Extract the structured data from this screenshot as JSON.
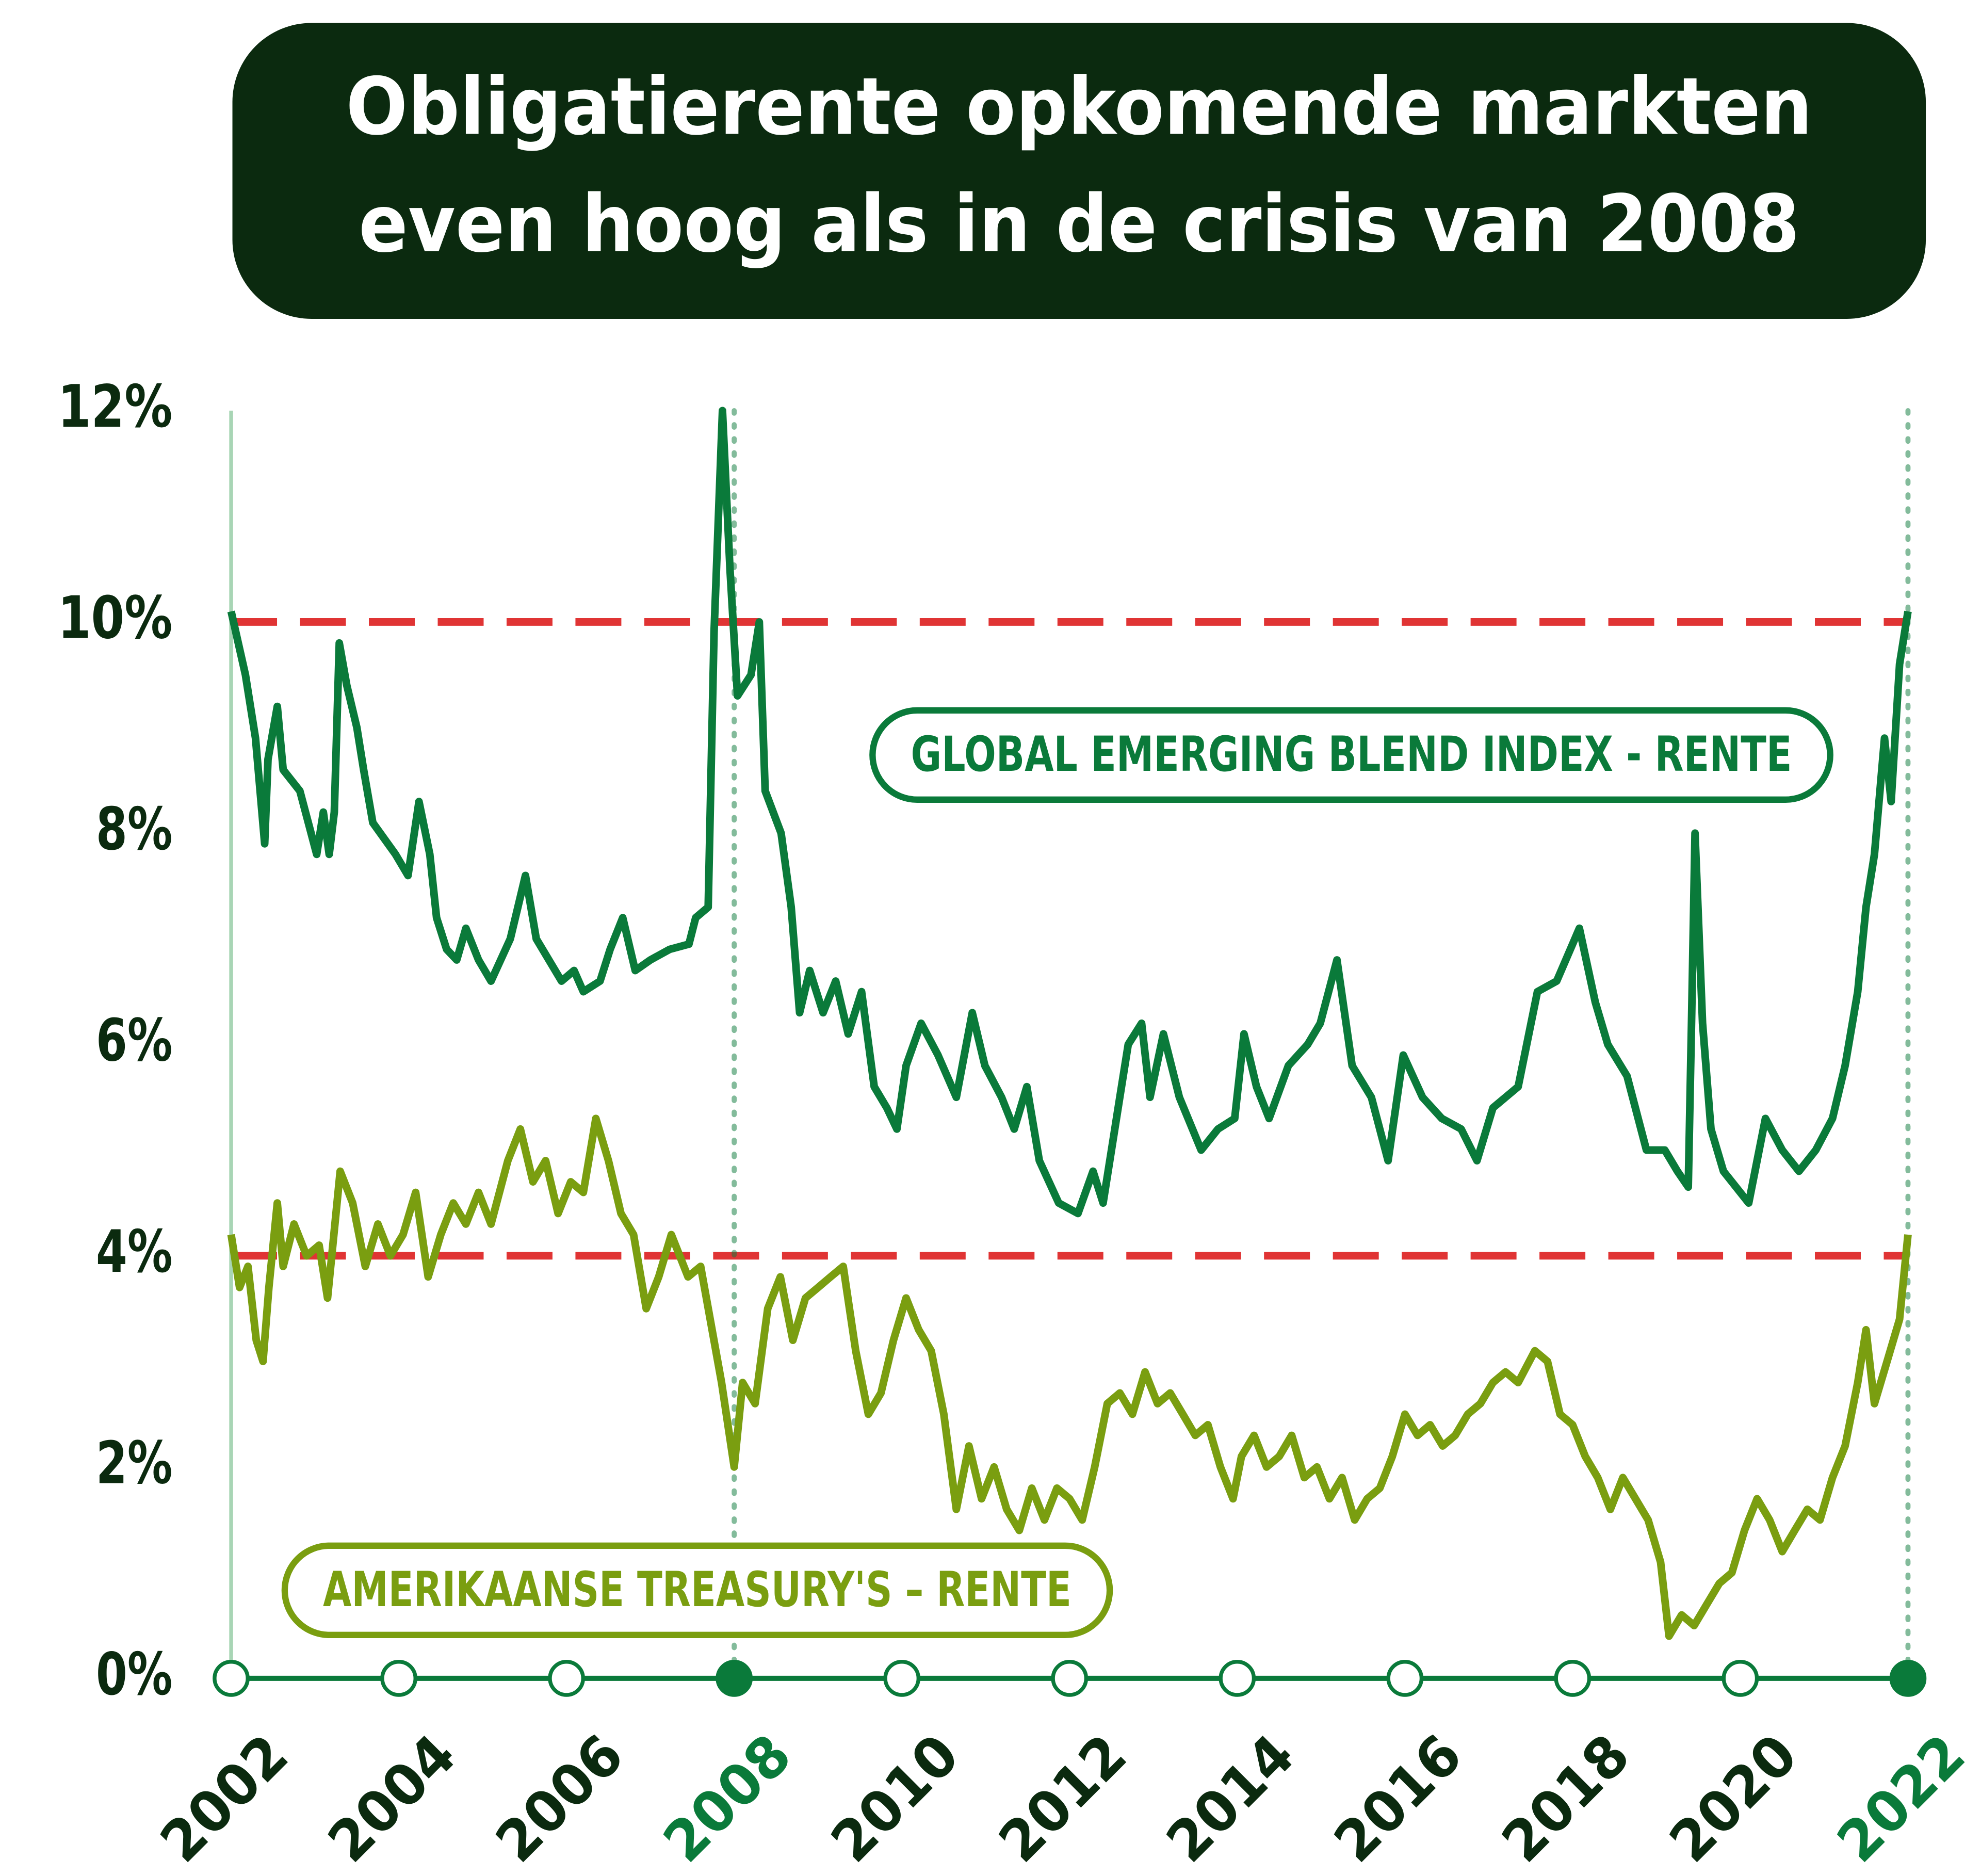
{
  "chart_data": {
    "type": "line",
    "title": [
      "Obligatierente opkomende markten",
      "even hoog als in de crisis van 2008"
    ],
    "xlim": [
      2002,
      2022
    ],
    "xticks": [
      2002,
      2004,
      2006,
      2008,
      2010,
      2012,
      2014,
      2016,
      2018,
      2020,
      2022
    ],
    "highlight_xticks": [
      2008,
      2022
    ],
    "ylim": [
      0,
      12
    ],
    "yticks": [
      {
        "value": 0,
        "label": "0%"
      },
      {
        "value": 2,
        "label": "2%"
      },
      {
        "value": 4,
        "label": "4%"
      },
      {
        "value": 6,
        "label": "6%"
      },
      {
        "value": 8,
        "label": "8%"
      },
      {
        "value": 10,
        "label": "10%"
      },
      {
        "value": 12,
        "label": "12%"
      }
    ],
    "reference_lines": [
      10,
      4
    ],
    "reference_color": "#e03434",
    "series": [
      {
        "name": "GLOBAL EMERGING BLEND INDEX - RENTE",
        "color": "#0a7a3a",
        "x": [
          2002.0,
          2002.17,
          2002.29,
          2002.4,
          2002.44,
          2002.55,
          2002.62,
          2002.82,
          2003.02,
          2003.1,
          2003.17,
          2003.23,
          2003.29,
          2003.38,
          2003.5,
          2003.58,
          2003.69,
          2003.96,
          2004.11,
          2004.24,
          2004.37,
          2004.45,
          2004.57,
          2004.69,
          2004.8,
          2004.95,
          2005.1,
          2005.33,
          2005.51,
          2005.64,
          2005.94,
          2006.09,
          2006.2,
          2006.4,
          2006.52,
          2006.67,
          2006.82,
          2007.0,
          2007.23,
          2007.46,
          2007.54,
          2007.69,
          2007.76,
          2007.86,
          2007.95,
          2008.04,
          2008.2,
          2008.3,
          2008.37,
          2008.56,
          2008.68,
          2008.78,
          2008.9,
          2009.06,
          2009.21,
          2009.36,
          2009.52,
          2009.67,
          2009.82,
          2009.94,
          2010.05,
          2010.23,
          2010.43,
          2010.65,
          2010.84,
          2010.99,
          2011.19,
          2011.34,
          2011.49,
          2011.64,
          2011.87,
          2012.1,
          2012.28,
          2012.4,
          2012.6,
          2012.7,
          2012.86,
          2012.96,
          2013.12,
          2013.31,
          2013.57,
          2013.77,
          2013.97,
          2014.08,
          2014.23,
          2014.38,
          2014.61,
          2014.84,
          2014.99,
          2015.19,
          2015.37,
          2015.6,
          2015.8,
          2015.98,
          2016.21,
          2016.44,
          2016.67,
          2016.86,
          2017.05,
          2017.35,
          2017.58,
          2017.81,
          2018.08,
          2018.27,
          2018.42,
          2018.65,
          2018.88,
          2019.1,
          2019.25,
          2019.38,
          2019.42,
          2019.46,
          2019.55,
          2019.65,
          2019.8,
          2020.1,
          2020.3,
          2020.5,
          2020.7,
          2020.9,
          2021.1,
          2021.25,
          2021.4,
          2021.5,
          2021.6,
          2021.72,
          2021.8,
          2021.9,
          2022.0
        ],
        "values": [
          10.1,
          9.5,
          8.9,
          7.9,
          8.7,
          9.2,
          8.6,
          8.4,
          7.8,
          8.2,
          7.8,
          8.2,
          9.8,
          9.4,
          9.0,
          8.6,
          8.1,
          7.8,
          7.6,
          8.3,
          7.8,
          7.2,
          6.9,
          6.8,
          7.1,
          6.8,
          6.6,
          7.0,
          7.6,
          7.0,
          6.6,
          6.7,
          6.5,
          6.6,
          6.9,
          7.2,
          6.7,
          6.8,
          6.9,
          6.95,
          7.2,
          7.3,
          9.9,
          12.0,
          10.5,
          9.3,
          9.5,
          10.0,
          8.4,
          8.0,
          7.3,
          6.3,
          6.7,
          6.3,
          6.6,
          6.1,
          6.5,
          5.6,
          5.4,
          5.2,
          5.8,
          6.2,
          5.9,
          5.5,
          6.3,
          5.8,
          5.5,
          5.2,
          5.6,
          4.9,
          4.5,
          4.4,
          4.8,
          4.5,
          5.5,
          6.0,
          6.2,
          5.5,
          6.1,
          5.5,
          5.0,
          5.2,
          5.3,
          6.1,
          5.6,
          5.3,
          5.8,
          6.0,
          6.2,
          6.8,
          5.8,
          5.5,
          4.9,
          5.9,
          5.5,
          5.3,
          5.2,
          4.9,
          5.4,
          5.6,
          6.5,
          6.6,
          7.1,
          6.4,
          6.0,
          5.7,
          5.0,
          5.0,
          4.8,
          4.65,
          6.3,
          8.0,
          6.2,
          5.2,
          4.8,
          4.5,
          5.3,
          5.0,
          4.8,
          5.0,
          5.3,
          5.8,
          6.5,
          7.3,
          7.8,
          8.9,
          8.3,
          9.6,
          10.1
        ]
      },
      {
        "name": "AMERIKAANSE TREASURY'S – RENTE",
        "color": "#7a9e10",
        "x": [
          2002.0,
          2002.1,
          2002.2,
          2002.3,
          2002.38,
          2002.45,
          2002.55,
          2002.62,
          2002.75,
          2002.9,
          2003.05,
          2003.15,
          2003.3,
          2003.45,
          2003.6,
          2003.75,
          2003.9,
          2004.05,
          2004.2,
          2004.35,
          2004.5,
          2004.65,
          2004.8,
          2004.95,
          2005.1,
          2005.3,
          2005.45,
          2005.6,
          2005.75,
          2005.9,
          2006.05,
          2006.2,
          2006.35,
          2006.5,
          2006.65,
          2006.8,
          2006.95,
          2007.1,
          2007.25,
          2007.45,
          2007.6,
          2007.85,
          2008.0,
          2008.1,
          2008.25,
          2008.4,
          2008.55,
          2008.7,
          2008.85,
          2009.0,
          2009.15,
          2009.3,
          2009.45,
          2009.6,
          2009.75,
          2009.9,
          2010.05,
          2010.2,
          2010.35,
          2010.5,
          2010.65,
          2010.8,
          2010.95,
          2011.1,
          2011.25,
          2011.4,
          2011.55,
          2011.7,
          2011.85,
          2012.0,
          2012.15,
          2012.3,
          2012.45,
          2012.6,
          2012.75,
          2012.9,
          2013.05,
          2013.2,
          2013.35,
          2013.5,
          2013.65,
          2013.8,
          2013.95,
          2014.05,
          2014.2,
          2014.35,
          2014.5,
          2014.65,
          2014.8,
          2014.95,
          2015.1,
          2015.25,
          2015.4,
          2015.55,
          2015.7,
          2015.85,
          2016.0,
          2016.15,
          2016.3,
          2016.45,
          2016.6,
          2016.75,
          2016.9,
          2017.05,
          2017.2,
          2017.35,
          2017.55,
          2017.7,
          2017.85,
          2018.0,
          2018.15,
          2018.3,
          2018.45,
          2018.6,
          2018.75,
          2018.9,
          2019.05,
          2019.15,
          2019.3,
          2019.45,
          2019.6,
          2019.75,
          2019.9,
          2020.05,
          2020.2,
          2020.35,
          2020.5,
          2020.65,
          2020.8,
          2020.95,
          2021.1,
          2021.25,
          2021.4,
          2021.5,
          2021.6,
          2021.75,
          2021.9,
          2022.0
        ],
        "values": [
          4.2,
          3.7,
          3.9,
          3.2,
          3.0,
          3.7,
          4.5,
          3.9,
          4.3,
          4.0,
          4.1,
          3.6,
          4.8,
          4.5,
          3.9,
          4.3,
          4.0,
          4.2,
          4.6,
          3.8,
          4.2,
          4.5,
          4.3,
          4.6,
          4.3,
          4.9,
          5.2,
          4.7,
          4.9,
          4.4,
          4.7,
          4.6,
          5.3,
          4.9,
          4.4,
          4.2,
          3.5,
          3.8,
          4.2,
          3.8,
          3.9,
          2.8,
          2.0,
          2.8,
          2.6,
          3.5,
          3.8,
          3.2,
          3.6,
          3.7,
          3.8,
          3.9,
          3.1,
          2.5,
          2.7,
          3.2,
          3.6,
          3.3,
          3.1,
          2.5,
          1.6,
          2.2,
          1.7,
          2.0,
          1.6,
          1.4,
          1.8,
          1.5,
          1.8,
          1.7,
          1.5,
          2.0,
          2.6,
          2.7,
          2.5,
          2.9,
          2.6,
          2.7,
          2.5,
          2.3,
          2.4,
          2.0,
          1.7,
          2.1,
          2.3,
          2.0,
          2.1,
          2.3,
          1.9,
          2.0,
          1.7,
          1.9,
          1.5,
          1.7,
          1.8,
          2.1,
          2.5,
          2.3,
          2.4,
          2.2,
          2.3,
          2.5,
          2.6,
          2.8,
          2.9,
          2.8,
          3.1,
          3.0,
          2.5,
          2.4,
          2.1,
          1.9,
          1.6,
          1.9,
          1.7,
          1.5,
          1.1,
          0.4,
          0.6,
          0.5,
          0.7,
          0.9,
          1.0,
          1.4,
          1.7,
          1.5,
          1.2,
          1.4,
          1.6,
          1.5,
          1.9,
          2.2,
          2.8,
          3.3,
          2.6,
          3.0,
          3.4,
          4.2
        ]
      }
    ]
  }
}
